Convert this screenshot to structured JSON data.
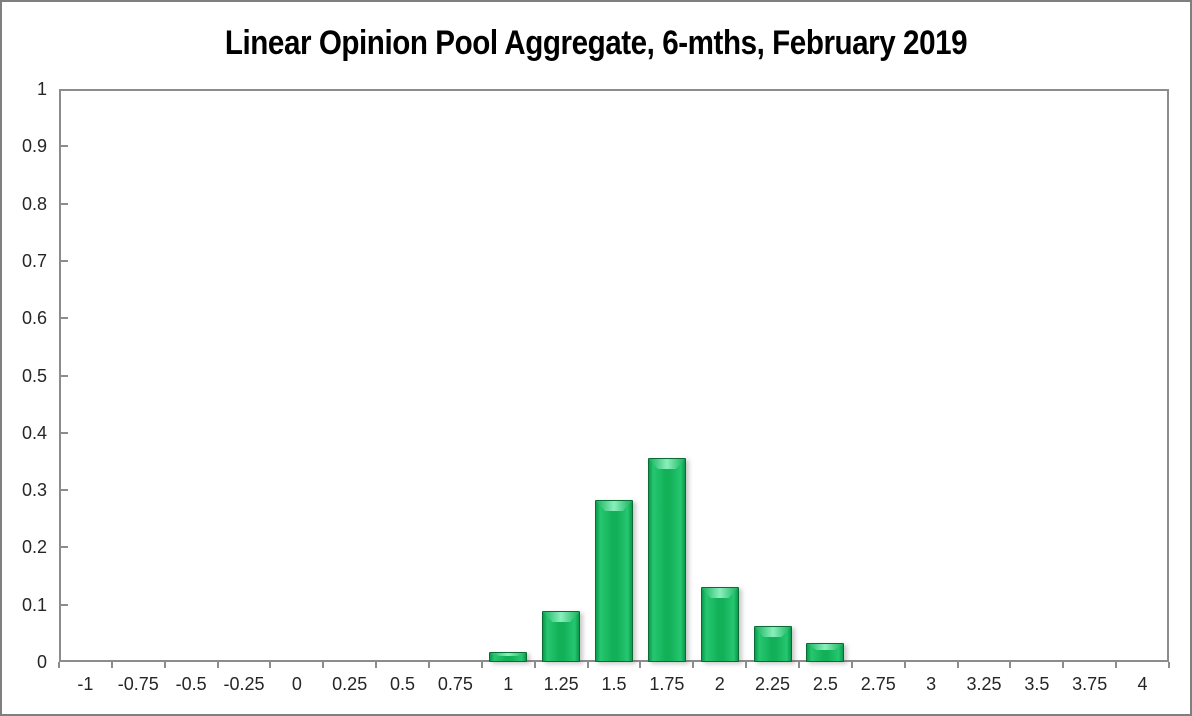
{
  "figure": {
    "kind": "excel-style-chart"
  },
  "colors": {
    "bar_fill": "#12b158",
    "bar_edge": "#0a6b35",
    "bar_highlight": "#8aefbc",
    "axis": "#8c8c8c",
    "outer_border": "#7f7f7f",
    "text": "#262626",
    "title_text": "#000000"
  },
  "chart_data": {
    "type": "bar",
    "title": "Linear Opinion Pool Aggregate, 6-mths, February 2019",
    "xlabel": "",
    "ylabel": "",
    "categories": [
      "-1",
      "-0.75",
      "-0.5",
      "-0.25",
      "0",
      "0.25",
      "0.5",
      "0.75",
      "1",
      "1.25",
      "1.5",
      "1.75",
      "2",
      "2.25",
      "2.5",
      "2.75",
      "3",
      "3.25",
      "3.5",
      "3.75",
      "4"
    ],
    "values": [
      0,
      0,
      0,
      0,
      0,
      0,
      0,
      0,
      0.018,
      0.089,
      0.283,
      0.356,
      0.131,
      0.063,
      0.033,
      0,
      0,
      0,
      0,
      0,
      0
    ],
    "ylim": [
      0,
      1
    ],
    "y_ticks": [
      {
        "label": "1",
        "value": 1
      },
      {
        "label": "0.9",
        "value": 0.9
      },
      {
        "label": "0.8",
        "value": 0.8
      },
      {
        "label": "0.7",
        "value": 0.7
      },
      {
        "label": "0.6",
        "value": 0.6
      },
      {
        "label": "0.5",
        "value": 0.5
      },
      {
        "label": "0.4",
        "value": 0.4
      },
      {
        "label": "0.3",
        "value": 0.3
      },
      {
        "label": "0.2",
        "value": 0.2
      },
      {
        "label": "0.1",
        "value": 0.1
      },
      {
        "label": "0",
        "value": 0
      }
    ],
    "grid": false,
    "legend": false,
    "series_name": "Linear Opinion Pool Aggregate"
  }
}
